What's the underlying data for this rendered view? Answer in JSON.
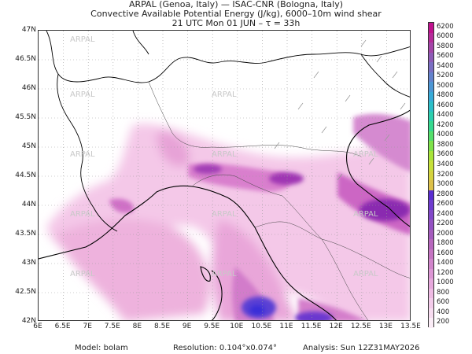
{
  "title": {
    "line1": "ARPAL (Genoa, Italy)  —  ISAC-CNR (Bologna, Italy)",
    "line2": "Convective Available Potential Energy (J/kg), 6000–10m wind shear",
    "line3": "21 UTC Mon 01 JUN  –  τ = 33h"
  },
  "watermark": "ARPAL",
  "lat_labels": [
    "47N",
    "46.5N",
    "46N",
    "45.5N",
    "45N",
    "44.5N",
    "44N",
    "43.5N",
    "43N",
    "42.5N",
    "42N"
  ],
  "lon_labels": [
    "6E",
    "6.5E",
    "7E",
    "7.5E",
    "8E",
    "8.5E",
    "9E",
    "9.5E",
    "10E",
    "10.5E",
    "11E",
    "11.5E",
    "12E",
    "12.5E",
    "13E",
    "13.5E"
  ],
  "colorbar": {
    "labels": [
      "6200",
      "6000",
      "5800",
      "5600",
      "5400",
      "5200",
      "5000",
      "4800",
      "4600",
      "4400",
      "4200",
      "4000",
      "3800",
      "3600",
      "3400",
      "3200",
      "3000",
      "2800",
      "2600",
      "2400",
      "2200",
      "2000",
      "1800",
      "1600",
      "1400",
      "1200",
      "1000",
      "800",
      "600",
      "400",
      "200"
    ],
    "colors": [
      "#c0128e",
      "#b62b9a",
      "#a445a8",
      "#8e5bb6",
      "#7a6ec2",
      "#6382cc",
      "#4c96d4",
      "#37abd8",
      "#2cbfc8",
      "#2ccfae",
      "#36d98f",
      "#54df6b",
      "#7ee24a",
      "#a8e43a",
      "#c6e03a",
      "#d4d23e",
      "#dcc04a",
      "#5a2dd1",
      "#6f3ccf",
      "#8248c9",
      "#9452c3",
      "#a55cbd",
      "#b767bd",
      "#c574c2",
      "#d185cb",
      "#dc96d4",
      "#e6a8dc",
      "#eebae3",
      "#f3cbea",
      "#f7dcf0",
      "#fbedf7"
    ]
  },
  "footer": {
    "model_label": "Model:",
    "model_value": "bolam",
    "resolution_label": "Resolution:",
    "resolution_value": "0.104°x0.074°",
    "analysis_label": "Analysis:",
    "analysis_value": "Sun 12Z31MAY2026"
  }
}
